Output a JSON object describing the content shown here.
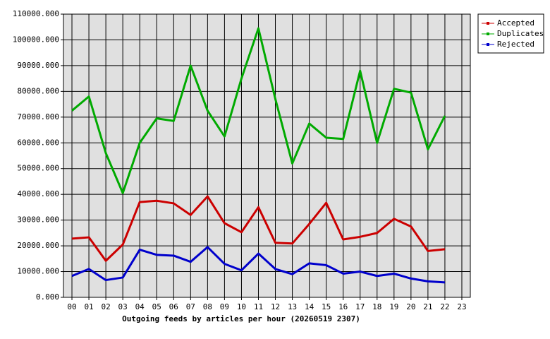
{
  "chart_data": {
    "type": "line",
    "title": "Outgoing feeds by articles per hour (20260519 2307)",
    "categories": [
      "00",
      "01",
      "02",
      "03",
      "04",
      "05",
      "06",
      "07",
      "08",
      "09",
      "10",
      "11",
      "12",
      "13",
      "14",
      "15",
      "16",
      "17",
      "18",
      "19",
      "20",
      "21",
      "22",
      "23"
    ],
    "series": [
      {
        "name": "Accepted",
        "color": "#cc0000",
        "values": [
          22800,
          23300,
          14200,
          20500,
          37000,
          37500,
          36500,
          32000,
          39200,
          28800,
          25300,
          35000,
          21200,
          20900,
          28500,
          36700,
          22500,
          23500,
          25000,
          30500,
          27500,
          18000,
          18700,
          null
        ]
      },
      {
        "name": "Duplicates",
        "color": "#00aa00",
        "values": [
          72500,
          78000,
          56000,
          40500,
          60000,
          69500,
          68500,
          90000,
          72500,
          62500,
          85000,
          104500,
          77000,
          52000,
          67500,
          62000,
          61500,
          88000,
          60000,
          81000,
          79500,
          57500,
          70500,
          null
        ]
      },
      {
        "name": "Rejected",
        "color": "#0000cc",
        "values": [
          8300,
          11000,
          6700,
          7700,
          18500,
          16500,
          16200,
          13800,
          19500,
          13000,
          10500,
          17000,
          11000,
          9000,
          13200,
          12500,
          9200,
          10000,
          8300,
          9200,
          7300,
          6200,
          5800,
          null
        ]
      }
    ],
    "ylim": [
      0,
      110000
    ],
    "yticks": [
      {
        "value": 0,
        "label": "0.000"
      },
      {
        "value": 10000,
        "label": "10000.000"
      },
      {
        "value": 20000,
        "label": "20000.000"
      },
      {
        "value": 30000,
        "label": "30000.000"
      },
      {
        "value": 40000,
        "label": "40000.000"
      },
      {
        "value": 50000,
        "label": "50000.000"
      },
      {
        "value": 60000,
        "label": "60000.000"
      },
      {
        "value": 70000,
        "label": "70000.000"
      },
      {
        "value": 80000,
        "label": "80000.000"
      },
      {
        "value": 90000,
        "label": "90000.000"
      },
      {
        "value": 100000,
        "label": "100000.000"
      },
      {
        "value": 110000,
        "label": "110000.000"
      }
    ],
    "grid": true,
    "legend": "right"
  }
}
